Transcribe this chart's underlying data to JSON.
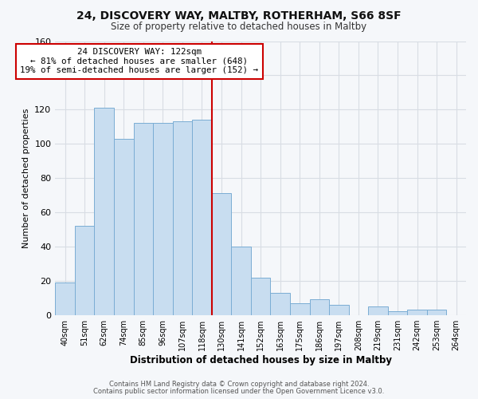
{
  "title": "24, DISCOVERY WAY, MALTBY, ROTHERHAM, S66 8SF",
  "subtitle": "Size of property relative to detached houses in Maltby",
  "xlabel": "Distribution of detached houses by size in Maltby",
  "ylabel": "Number of detached properties",
  "bar_labels": [
    "40sqm",
    "51sqm",
    "62sqm",
    "74sqm",
    "85sqm",
    "96sqm",
    "107sqm",
    "118sqm",
    "130sqm",
    "141sqm",
    "152sqm",
    "163sqm",
    "175sqm",
    "186sqm",
    "197sqm",
    "208sqm",
    "219sqm",
    "231sqm",
    "242sqm",
    "253sqm",
    "264sqm"
  ],
  "bar_heights": [
    19,
    52,
    121,
    103,
    112,
    112,
    113,
    114,
    71,
    40,
    22,
    13,
    7,
    9,
    6,
    0,
    5,
    2,
    3,
    3,
    0
  ],
  "bar_color": "#c8ddf0",
  "bar_edge_color": "#7aadd4",
  "vline_color": "#cc0000",
  "annotation_line1": "24 DISCOVERY WAY: 122sqm",
  "annotation_line2": "← 81% of detached houses are smaller (648)",
  "annotation_line3": "19% of semi-detached houses are larger (152) →",
  "annotation_box_color": "#ffffff",
  "annotation_box_edge": "#cc0000",
  "ylim": [
    0,
    160
  ],
  "yticks": [
    0,
    20,
    40,
    60,
    80,
    100,
    120,
    140,
    160
  ],
  "footer1": "Contains HM Land Registry data © Crown copyright and database right 2024.",
  "footer2": "Contains public sector information licensed under the Open Government Licence v3.0.",
  "bg_color": "#f5f7fa",
  "plot_bg_color": "#f5f7fa",
  "grid_color": "#d8dde4"
}
